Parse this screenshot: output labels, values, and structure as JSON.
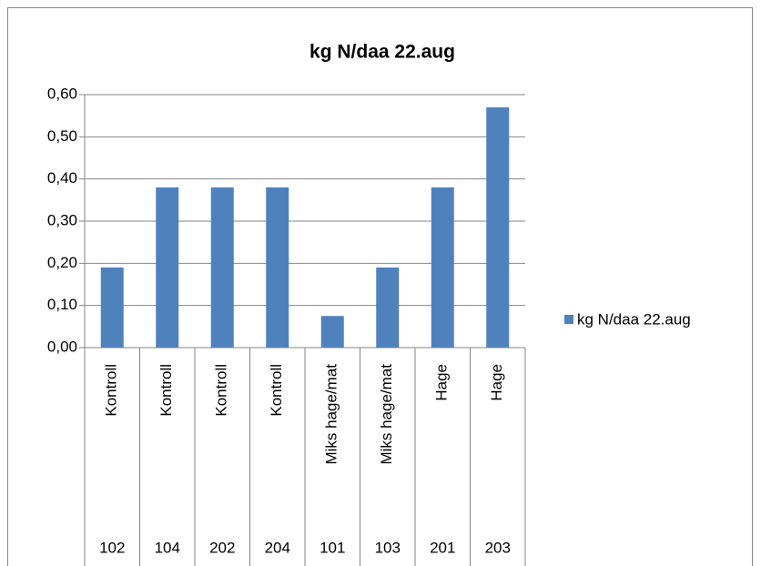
{
  "chart_data": {
    "type": "bar",
    "title": "kg N/daa 22.aug",
    "categories": [
      "Kontroll",
      "Kontroll",
      "Kontroll",
      "Kontroll",
      "Miks hage/mat",
      "Miks hage/mat",
      "Hage",
      "Hage"
    ],
    "category_codes": [
      "102",
      "104",
      "202",
      "204",
      "101",
      "103",
      "201",
      "203"
    ],
    "series": [
      {
        "name": "kg N/daa 22.aug",
        "color": "#4f81bd",
        "values": [
          0.19,
          0.38,
          0.38,
          0.38,
          0.075,
          0.19,
          0.38,
          0.57
        ]
      }
    ],
    "ylim": [
      0,
      0.6
    ],
    "yticks": [
      {
        "value": 0,
        "label": "0,00"
      },
      {
        "value": 0.1,
        "label": "0,10"
      },
      {
        "value": 0.2,
        "label": "0,20"
      },
      {
        "value": 0.3,
        "label": "0,30"
      },
      {
        "value": 0.4,
        "label": "0,40"
      },
      {
        "value": 0.5,
        "label": "0,50"
      },
      {
        "value": 0.6,
        "label": "0,60"
      }
    ],
    "grid": true,
    "legend": "right"
  }
}
